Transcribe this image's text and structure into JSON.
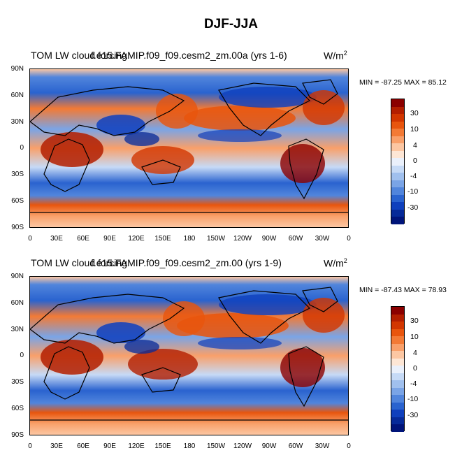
{
  "title": "DJF-JJA",
  "colors": {
    "scale": [
      "#8b0000",
      "#b31e00",
      "#d23600",
      "#e8550d",
      "#f37a35",
      "#f9a06a",
      "#fcc7a3",
      "#fde6d5",
      "#eaf0fb",
      "#c6daf6",
      "#a0c0ee",
      "#7aa4e6",
      "#5185dc",
      "#2a63cf",
      "#0f40bd",
      "#062a99",
      "#00147a"
    ],
    "ocean_warm": "#e8550d",
    "ocean_cold": "#2a63cf"
  },
  "panels": [
    {
      "title_left": "TOM LW cloud forcing",
      "title_overlay": "f.e15.FAMIP.f09_f09.cesm2_zm.00a (yrs 1-6)",
      "units": "W/m",
      "units_sup": "2",
      "minmax": "MIN = -87.25 MAX =  85.12"
    },
    {
      "title_left": "TOM LW cloud forcing",
      "title_overlay": "f.e15.FAMIP.f09_f09.cesm2_zm.00 (yrs 1-9)",
      "units": "W/m",
      "units_sup": "2",
      "minmax": "MIN = -87.43 MAX =  78.93"
    }
  ],
  "lat_ticks": [
    "90N",
    "60N",
    "30N",
    "0",
    "30S",
    "60S",
    "90S"
  ],
  "lon_ticks": [
    "0",
    "30E",
    "60E",
    "90E",
    "120E",
    "150E",
    "180",
    "150W",
    "120W",
    "90W",
    "60W",
    "30W",
    "0"
  ],
  "colorbar_labels": [
    "30",
    "10",
    "4",
    "0",
    "-4",
    "-10",
    "-30"
  ]
}
